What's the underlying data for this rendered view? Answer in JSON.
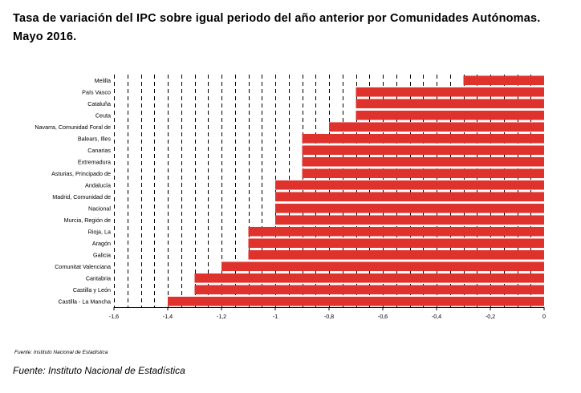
{
  "title_line1": "Tasa de variación del IPC sobre igual periodo del año anterior por Comunidades Autónomas.",
  "title_line2": "Mayo 2016.",
  "source_small": "Fuente: Instituto Nacional de Estadística",
  "source_big": "Fuente: Instituto Nacional de Estadística",
  "colors": {
    "bar": "#e0322c",
    "grid": "#000000"
  },
  "chart_data": {
    "type": "bar",
    "orientation": "horizontal",
    "categories": [
      "Melilla",
      "País Vasco",
      "Cataluña",
      "Ceuta",
      "Navarra, Comunidad Foral de",
      "Balears, Illes",
      "Canarias",
      "Extremadura",
      "Asturias, Principado de",
      "Andalucía",
      "Madrid, Comunidad de",
      "Nacional",
      "Murcia, Región de",
      "Rioja, La",
      "Aragón",
      "Galicia",
      "Comunitat Valenciana",
      "Cantabria",
      "Castilla y León",
      "Castilla - La Mancha"
    ],
    "values": [
      -0.3,
      -0.7,
      -0.7,
      -0.7,
      -0.8,
      -0.9,
      -0.9,
      -0.9,
      -0.9,
      -1.0,
      -1.0,
      -1.0,
      -1.0,
      -1.1,
      -1.1,
      -1.1,
      -1.2,
      -1.3,
      -1.3,
      -1.4
    ],
    "xlim": [
      -1.6,
      0
    ],
    "xticks": [
      -1.6,
      -1.4,
      -1.2,
      -1,
      -0.8,
      -0.6,
      -0.4,
      -0.2,
      0
    ],
    "xtick_labels": [
      "-1,6",
      "-1,4",
      "-1,2",
      "-1",
      "-0,8",
      "-0,6",
      "-0,4",
      "-0,2",
      "0"
    ],
    "grid": "vertical dashed",
    "legend": "none"
  }
}
